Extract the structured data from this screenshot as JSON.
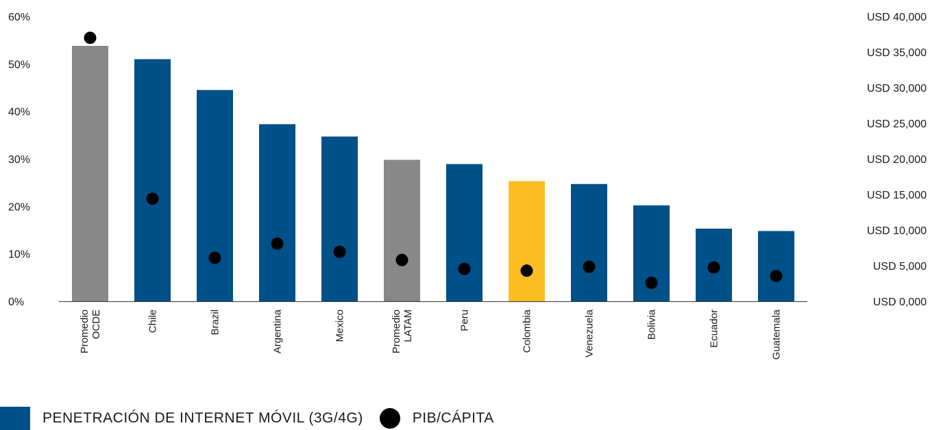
{
  "chart_data": {
    "type": "bar",
    "categories": [
      [
        "Promedio",
        "OCDE"
      ],
      [
        "Chile"
      ],
      [
        "Brazil"
      ],
      [
        "Argentina"
      ],
      [
        "Mexico"
      ],
      [
        "Promedio",
        "LATAM"
      ],
      [
        "Peru"
      ],
      [
        "Colombia"
      ],
      [
        "Venezuela"
      ],
      [
        "Bolivia"
      ],
      [
        "Ecuador"
      ],
      [
        "Guatemala"
      ]
    ],
    "series": [
      {
        "name": "PENETRACIÓN DE INTERNET MÓVIL (3G/4G)",
        "type": "bar",
        "axis": "left",
        "values": [
          53.8,
          51,
          44.5,
          37.3,
          34.7,
          29.8,
          28.9,
          25.3,
          24.7,
          20.2,
          15.3,
          14.8
        ],
        "colors": [
          "#888888",
          "#00508a",
          "#00508a",
          "#00508a",
          "#00508a",
          "#888888",
          "#00508a",
          "#fbbd23",
          "#00508a",
          "#00508a",
          "#00508a",
          "#00508a"
        ]
      },
      {
        "name": "PIB/CÁPITA",
        "type": "scatter",
        "axis": "right",
        "values": [
          37000,
          14400,
          6100,
          8100,
          6950,
          5800,
          4550,
          4300,
          4850,
          2600,
          4750,
          3550
        ],
        "color": "#000000"
      }
    ],
    "y_left": {
      "ylim": [
        0,
        60
      ],
      "ticks": [
        "0%",
        "10%",
        "20%",
        "30%",
        "40%",
        "50%",
        "60%"
      ]
    },
    "y_right": {
      "ylim": [
        0,
        40000
      ],
      "ticks": [
        "USD 0,000",
        "USD 5,000",
        "USD 10,000",
        "USD 15,000",
        "USD 20,000",
        "USD 25,000",
        "USD 30,000",
        "USD 35,000",
        "USD 40,000"
      ]
    },
    "xlabel": "",
    "ylabel": "",
    "grid": false,
    "legend_position": "bottom-left"
  },
  "legend": {
    "bar_label": "PENETRACIÓN DE INTERNET MÓVIL (3G/4G)",
    "bar_color": "#00508a",
    "dot_label": "PIB/CÁPITA"
  }
}
